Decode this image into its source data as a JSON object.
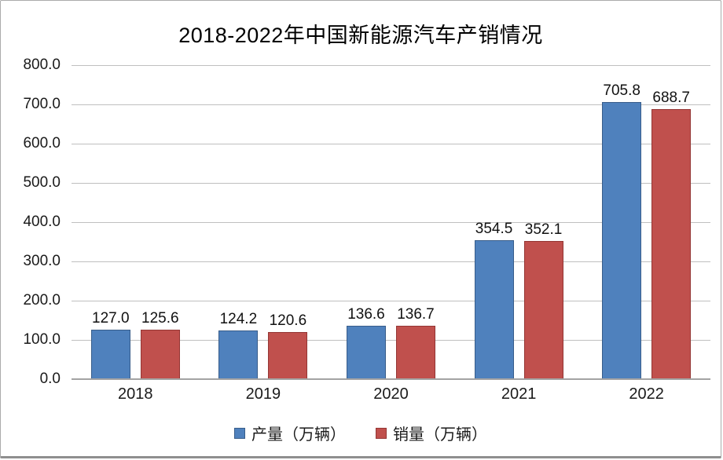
{
  "chart_data": {
    "type": "bar",
    "title": "2018-2022年中国新能源汽车产销情况",
    "categories": [
      "2018",
      "2019",
      "2020",
      "2021",
      "2022"
    ],
    "series": [
      {
        "name": "产量（万辆）",
        "color": "#4F81BD",
        "border_color": "#385D8A",
        "values": [
          127.0,
          124.2,
          136.6,
          354.5,
          705.8
        ],
        "value_labels": [
          "127.0",
          "124.2",
          "136.6",
          "354.5",
          "705.8"
        ]
      },
      {
        "name": "销量（万辆）",
        "color": "#C0504D",
        "border_color": "#943634",
        "values": [
          125.6,
          120.6,
          136.7,
          352.1,
          688.7
        ],
        "value_labels": [
          "125.6",
          "120.6",
          "136.7",
          "352.1",
          "688.7"
        ]
      }
    ],
    "ylim": [
      0,
      800
    ],
    "ytick_step": 100,
    "ytick_labels": [
      "0.0",
      "100.0",
      "200.0",
      "300.0",
      "400.0",
      "500.0",
      "600.0",
      "700.0",
      "800.0"
    ],
    "grid": true,
    "gridline_color": "#bfbfbf",
    "axis_line_color": "#a3a3a3",
    "legend_position": "bottom",
    "value_labels_shown": true
  }
}
